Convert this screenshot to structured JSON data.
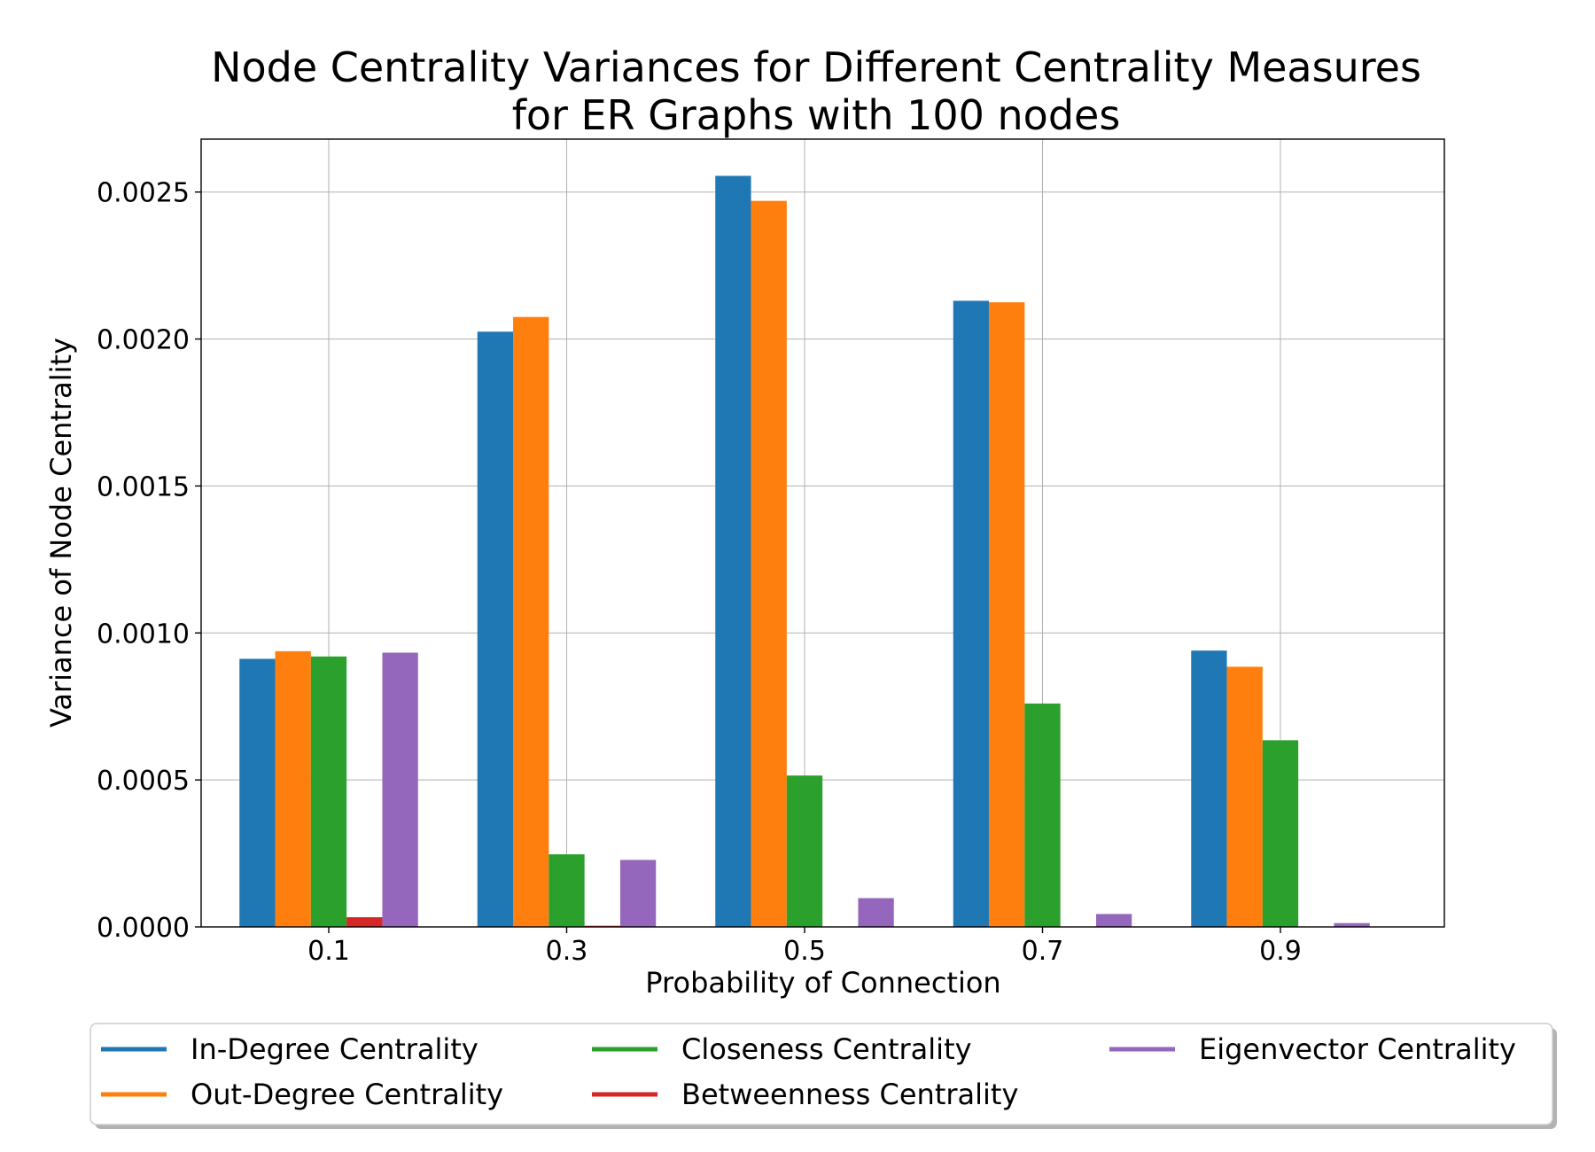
{
  "chart_data": {
    "type": "bar",
    "title_lines": [
      "Node Centrality Variances for Different Centrality Measures",
      "for ER Graphs with 100 nodes"
    ],
    "xlabel": "Probability of Connection",
    "ylabel": "Variance of Node Centrality",
    "categories": [
      "0.1",
      "0.3",
      "0.5",
      "0.7",
      "0.9"
    ],
    "ylim": [
      0,
      0.00268
    ],
    "yticks": [
      0.0,
      0.0005,
      0.001,
      0.0015,
      0.002,
      0.0025
    ],
    "ytick_labels": [
      "0.0000",
      "0.0005",
      "0.0010",
      "0.0015",
      "0.0020",
      "0.0025"
    ],
    "grid": true,
    "legend_position": "bottom-center",
    "series": [
      {
        "name": "In-Degree Centrality",
        "color": "#1f77b4",
        "values": [
          0.000912,
          0.002025,
          0.002555,
          0.00213,
          0.00094
        ]
      },
      {
        "name": "Out-Degree Centrality",
        "color": "#ff7f0e",
        "values": [
          0.000938,
          0.002075,
          0.00247,
          0.002125,
          0.000885
        ]
      },
      {
        "name": "Closeness Centrality",
        "color": "#2ca02c",
        "values": [
          0.00092,
          0.000247,
          0.000515,
          0.00076,
          0.000635
        ]
      },
      {
        "name": "Betweenness Centrality",
        "color": "#d62728",
        "values": [
          3.3e-05,
          4e-06,
          0.0,
          0.0,
          0.0
        ]
      },
      {
        "name": "Eigenvector Centrality",
        "color": "#9467bd",
        "values": [
          0.000933,
          0.000228,
          9.8e-05,
          4.4e-05,
          1.3e-05
        ]
      }
    ]
  }
}
